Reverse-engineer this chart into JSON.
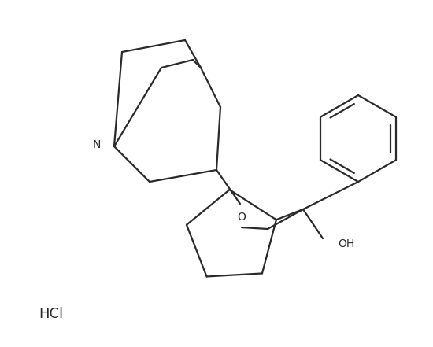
{
  "bg_color": "#ffffff",
  "line_color": "#2a2a2a",
  "line_width": 1.6,
  "fig_width": 5.5,
  "fig_height": 4.41,
  "dpi": 100,
  "N_label": "N",
  "O_label": "O",
  "OH_label": "OH",
  "HCl_label": "HCl",
  "font_size_labels": 10,
  "font_size_HCl": 13
}
